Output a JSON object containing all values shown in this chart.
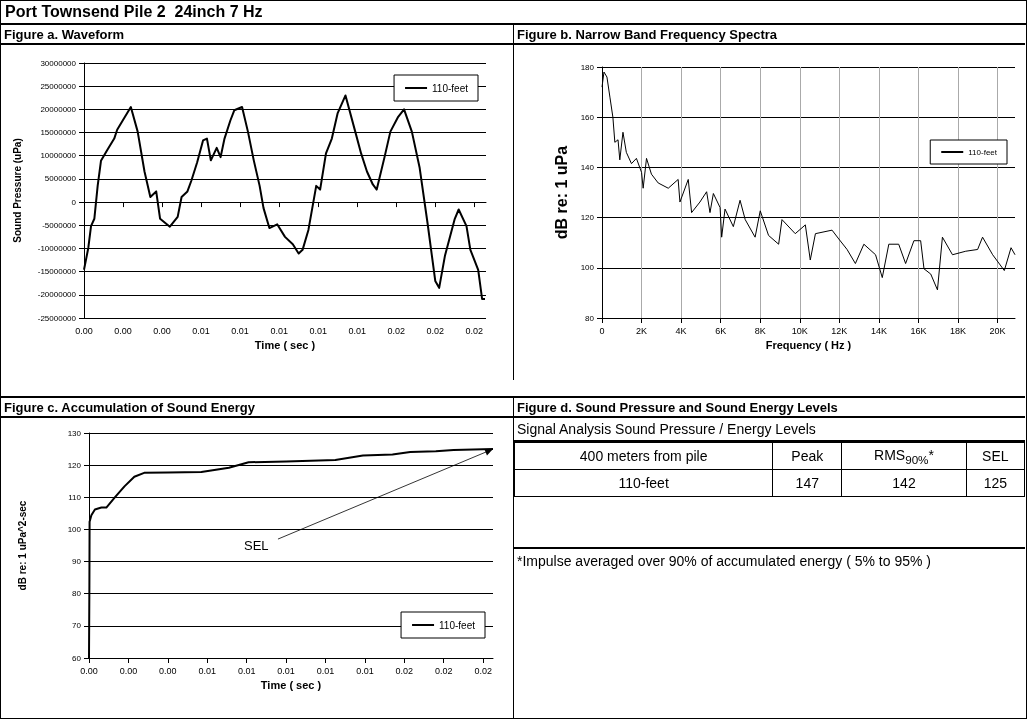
{
  "chart_data": [
    {
      "type": "line",
      "title": "Port Townsend Pile 2  24inch 7 Hz",
      "subtitle": "Figure a. Waveform",
      "xlabel": "Time ( sec )",
      "ylabel": "Sound Pressure (uPa)",
      "xlim": [
        0,
        0.0206
      ],
      "xticks": [
        {
          "value": 0,
          "label": "0.00"
        },
        {
          "value": 0.002,
          "label": "0.00"
        },
        {
          "value": 0.004,
          "label": "0.00"
        },
        {
          "value": 0.006,
          "label": "0.01"
        },
        {
          "value": 0.008,
          "label": "0.01"
        },
        {
          "value": 0.01,
          "label": "0.01"
        },
        {
          "value": 0.012,
          "label": "0.01"
        },
        {
          "value": 0.014,
          "label": "0.01"
        },
        {
          "value": 0.016,
          "label": "0.02"
        },
        {
          "value": 0.018,
          "label": "0.02"
        },
        {
          "value": 0.02,
          "label": "0.02"
        }
      ],
      "ylim": [
        -25000000,
        30000000
      ],
      "yticks": [
        -25000000,
        -20000000,
        -15000000,
        -10000000,
        -5000000,
        0,
        5000000,
        10000000,
        15000000,
        20000000,
        25000000,
        30000000
      ],
      "grid": "y",
      "legend": "top right",
      "series": [
        {
          "name": "110-feet",
          "color": "#000000",
          "x": [
            0,
            0.00022,
            0.00036,
            0.00053,
            0.0007,
            0.00087,
            0.0012,
            0.00155,
            0.0017,
            0.0024,
            0.00275,
            0.0031,
            0.0034,
            0.0037,
            0.0039,
            0.0044,
            0.0048,
            0.005,
            0.0053,
            0.0055,
            0.0058,
            0.0061,
            0.0063,
            0.0065,
            0.0068,
            0.007,
            0.0072,
            0.0075,
            0.0077,
            0.0081,
            0.0084,
            0.0087,
            0.009,
            0.0092,
            0.0095,
            0.0099,
            0.0103,
            0.0107,
            0.011,
            0.0112,
            0.0115,
            0.0119,
            0.0121,
            0.0124,
            0.0127,
            0.013,
            0.0134,
            0.0139,
            0.0142,
            0.0145,
            0.0148,
            0.015,
            0.0154,
            0.0157,
            0.0161,
            0.0164,
            0.0168,
            0.0172,
            0.0176,
            0.018,
            0.0182,
            0.0185,
            0.019,
            0.0192,
            0.0196,
            0.0198,
            0.0202,
            0.0204,
            0.02055
          ],
          "values": [
            -14600000,
            -9900000,
            -5200000,
            -3600000,
            3500000,
            8900000,
            11300000,
            13700000,
            15600000,
            20500000,
            15200000,
            6600000,
            1100000,
            2300000,
            -3600000,
            -5300000,
            -3200000,
            1100000,
            2300000,
            4600000,
            8600000,
            13300000,
            13700000,
            9000000,
            11700000,
            9700000,
            13700000,
            17600000,
            19800000,
            20500000,
            15200000,
            9000000,
            3500000,
            -1300000,
            -5600000,
            -4800000,
            -7500000,
            -9100000,
            -11100000,
            -10300000,
            -6000000,
            3500000,
            2700000,
            10500000,
            13700000,
            19200000,
            23000000,
            15200000,
            10500000,
            6600000,
            3800000,
            2700000,
            9700000,
            15200000,
            18400000,
            20000000,
            15200000,
            7400000,
            -4400000,
            -17000000,
            -18500000,
            -11500000,
            -3600000,
            -1600000,
            -5200000,
            -10300000,
            -14600000,
            -20900000,
            -20900000
          ]
        }
      ]
    },
    {
      "type": "line",
      "title": "Figure b. Narrow Band Frequency Spectra",
      "xlabel": "Frequency ( Hz )",
      "ylabel": "dB re: 1 uPa",
      "xlim": [
        0,
        20880
      ],
      "xticks": [
        0,
        {
          "value": 2000,
          "label": "2K"
        },
        {
          "value": 4000,
          "label": "4K"
        },
        {
          "value": 6000,
          "label": "6K"
        },
        {
          "value": 8000,
          "label": "8K"
        },
        {
          "value": 10000,
          "label": "10K"
        },
        {
          "value": 12000,
          "label": "12K"
        },
        {
          "value": 14000,
          "label": "14K"
        },
        {
          "value": 16000,
          "label": "16K"
        },
        {
          "value": 18000,
          "label": "18K"
        },
        {
          "value": 20000,
          "label": "20K"
        }
      ],
      "ylim": [
        80,
        180
      ],
      "yticks": [
        80,
        100,
        120,
        140,
        160,
        180
      ],
      "grid": true,
      "legend": "right",
      "series": [
        {
          "name": "110-feet",
          "color": "#000000",
          "x": [
            0,
            100,
            250,
            400,
            550,
            650,
            810,
            900,
            1060,
            1230,
            1490,
            1740,
            2000,
            2080,
            2250,
            2500,
            2840,
            3350,
            3850,
            3940,
            4360,
            4530,
            4950,
            5290,
            5460,
            5630,
            5970,
            6050,
            6220,
            6640,
            6980,
            7240,
            7740,
            8000,
            8420,
            8930,
            9100,
            9770,
            10280,
            10530,
            10790,
            11630,
            11970,
            12390,
            12810,
            13240,
            13830,
            14170,
            14500,
            15000,
            15350,
            15770,
            16110,
            16280,
            16620,
            16960,
            17210,
            17720,
            18390,
            18990,
            19240,
            19750,
            20340,
            20680,
            20880
          ],
          "values": [
            172,
            178,
            176,
            168,
            160,
            150,
            151,
            143,
            154,
            146,
            141.5,
            143.6,
            138,
            131.7,
            143.6,
            137.3,
            133.8,
            131.7,
            135.2,
            126.2,
            135.2,
            122,
            126.2,
            130.3,
            122,
            129.6,
            124,
            112.2,
            123.4,
            116.4,
            126.9,
            119.2,
            112.2,
            122.7,
            112.9,
            109.4,
            119.2,
            113.6,
            117.1,
            103.1,
            113.6,
            115,
            111.5,
            107.3,
            101.7,
            109.4,
            105.2,
            96.1,
            109.4,
            109.4,
            101.7,
            110.8,
            110.8,
            99.6,
            97.5,
            91.2,
            112.2,
            105.2,
            106.6,
            107.3,
            112.2,
            105.2,
            98.9,
            108,
            105.2
          ]
        }
      ]
    },
    {
      "type": "line",
      "title": "Figure c. Accumulation of Sound Energy",
      "xlabel": "Time ( sec )",
      "ylabel": "dB re: 1 uPa^2-sec",
      "xlim": [
        0,
        0.0205
      ],
      "xticks": [
        {
          "value": 0,
          "label": "0.00"
        },
        {
          "value": 0.002,
          "label": "0.00"
        },
        {
          "value": 0.004,
          "label": "0.00"
        },
        {
          "value": 0.006,
          "label": "0.01"
        },
        {
          "value": 0.008,
          "label": "0.01"
        },
        {
          "value": 0.01,
          "label": "0.01"
        },
        {
          "value": 0.012,
          "label": "0.01"
        },
        {
          "value": 0.014,
          "label": "0.01"
        },
        {
          "value": 0.016,
          "label": "0.02"
        },
        {
          "value": 0.018,
          "label": "0.02"
        },
        {
          "value": 0.02,
          "label": "0.02"
        }
      ],
      "ylim": [
        60,
        130
      ],
      "yticks": [
        60,
        70,
        80,
        90,
        100,
        110,
        120,
        130
      ],
      "grid": "y",
      "legend": "bottom right",
      "annotations": [
        {
          "text": "SEL",
          "x": 0.0205,
          "y": 125
        }
      ],
      "series": [
        {
          "name": "110-feet",
          "color": "#000000",
          "x": [
            0,
            2e-05,
            3e-05,
            0.00012,
            0.0003,
            0.00063,
            0.00088,
            0.0013,
            0.0018,
            0.0023,
            0.0028,
            0.004,
            0.0057,
            0.0071,
            0.0081,
            0.01,
            0.0125,
            0.0132,
            0.0139,
            0.0154,
            0.0163,
            0.0176,
            0.0185,
            0.0205
          ],
          "values": [
            60,
            82.6,
            102.4,
            104.4,
            106.2,
            106.8,
            106.8,
            109.9,
            113.4,
            116.4,
            117.6,
            117.7,
            117.9,
            119.2,
            120.9,
            121.1,
            121.6,
            122.3,
            123,
            123.3,
            124.1,
            124.3,
            124.7,
            125
          ]
        }
      ]
    },
    {
      "type": "other",
      "title": "Figure d. Sound Pressure and Sound Energy Levels",
      "annotations": [
        "Signal Analysis Sound Pressure / Energy Levels",
        "400 meters from pile",
        "Peak",
        "RMS$_{90%}$*",
        "SEL",
        "110-feet",
        "147",
        "142",
        "125",
        "*Impulse averaged over 90% of accumulated energy ( 5% to 95% )"
      ]
    }
  ]
}
